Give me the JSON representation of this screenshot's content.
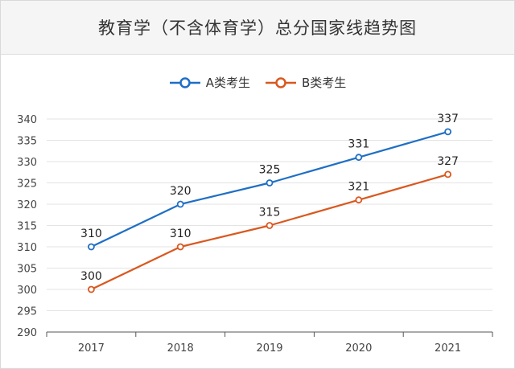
{
  "chart_data": {
    "type": "line",
    "title": "教育学（不含体育学）总分国家线趋势图",
    "xlabel": "",
    "ylabel": "",
    "categories": [
      "2017",
      "2018",
      "2019",
      "2020",
      "2021"
    ],
    "ylim": [
      290,
      340
    ],
    "yticks": [
      "290",
      "295",
      "300",
      "305",
      "310",
      "315",
      "320",
      "325",
      "330",
      "335",
      "340"
    ],
    "grid": true,
    "legend_position": "top-center",
    "series": [
      {
        "name": "A类考生",
        "values": [
          310,
          320,
          325,
          331,
          337
        ],
        "color": "#1f6fc5"
      },
      {
        "name": "B类考生",
        "values": [
          300,
          310,
          315,
          321,
          327
        ],
        "color": "#d9581f"
      }
    ]
  }
}
